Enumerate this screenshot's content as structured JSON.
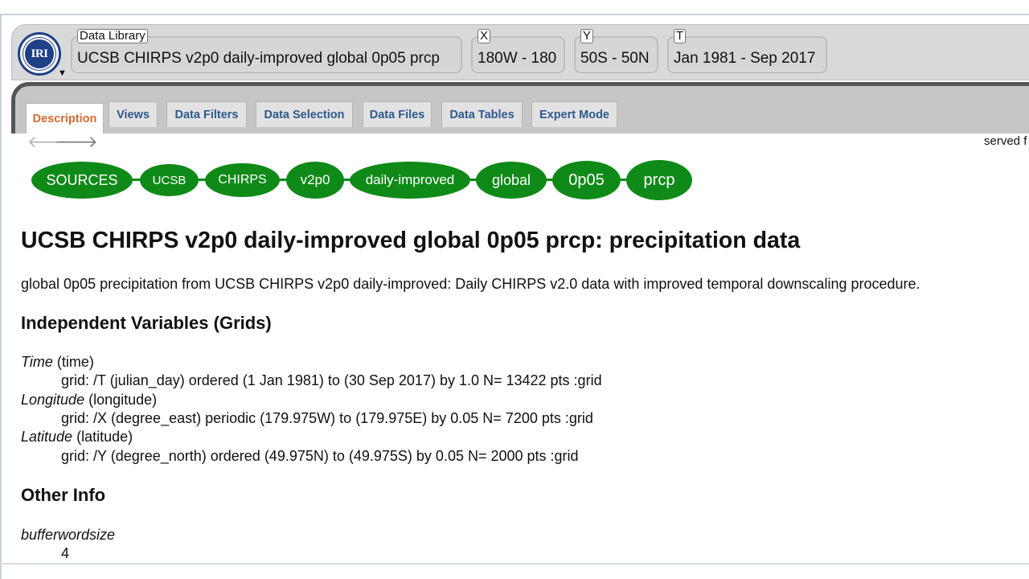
{
  "header": {
    "logo_text": "IRI",
    "fields": [
      {
        "tag": "Data Library",
        "value": "UCSB CHIRPS v2p0 daily-improved global 0p05 prcp"
      },
      {
        "tag": "X",
        "value": "180W - 180"
      },
      {
        "tag": "Y",
        "value": "50S - 50N"
      },
      {
        "tag": "T",
        "value": "Jan 1981 - Sep 2017"
      }
    ]
  },
  "tabs": [
    "Description",
    "Views",
    "Data Filters",
    "Data Selection",
    "Data Files",
    "Data Tables",
    "Expert Mode"
  ],
  "active_tab": "Description",
  "served_text": "served f",
  "breadcrumbs": [
    "SOURCES",
    "UCSB",
    "CHIRPS",
    "v2p0",
    "daily-improved",
    "global",
    "0p05",
    "prcp"
  ],
  "page": {
    "title": "UCSB CHIRPS v2p0 daily-improved global 0p05 prcp: precipitation data",
    "description": "global 0p05 precipitation from UCSB CHIRPS v2p0 daily-improved: Daily CHIRPS v2.0 data with improved temporal downscaling procedure.",
    "independent_heading": "Independent Variables (Grids)",
    "variables": [
      {
        "name": "Time",
        "id": "(time)",
        "grid": "grid: /T (julian_day) ordered (1 Jan 1981) to (30 Sep 2017) by 1.0 N= 13422 pts :grid"
      },
      {
        "name": "Longitude",
        "id": "(longitude)",
        "grid": "grid: /X (degree_east) periodic (179.975W) to (179.975E) by 0.05 N= 7200 pts :grid"
      },
      {
        "name": "Latitude",
        "id": "(latitude)",
        "grid": "grid: /Y (degree_north) ordered (49.975N) to (49.975S) by 0.05 N= 2000 pts :grid"
      }
    ],
    "other_heading": "Other Info",
    "other": [
      {
        "name": "bufferwordsize",
        "value": "4"
      }
    ]
  },
  "colors": {
    "breadcrumb_green": "#0f8a18",
    "tab_link": "#2d5a8e",
    "active_tab": "#d6692b",
    "logo_blue": "#1f3f86"
  }
}
